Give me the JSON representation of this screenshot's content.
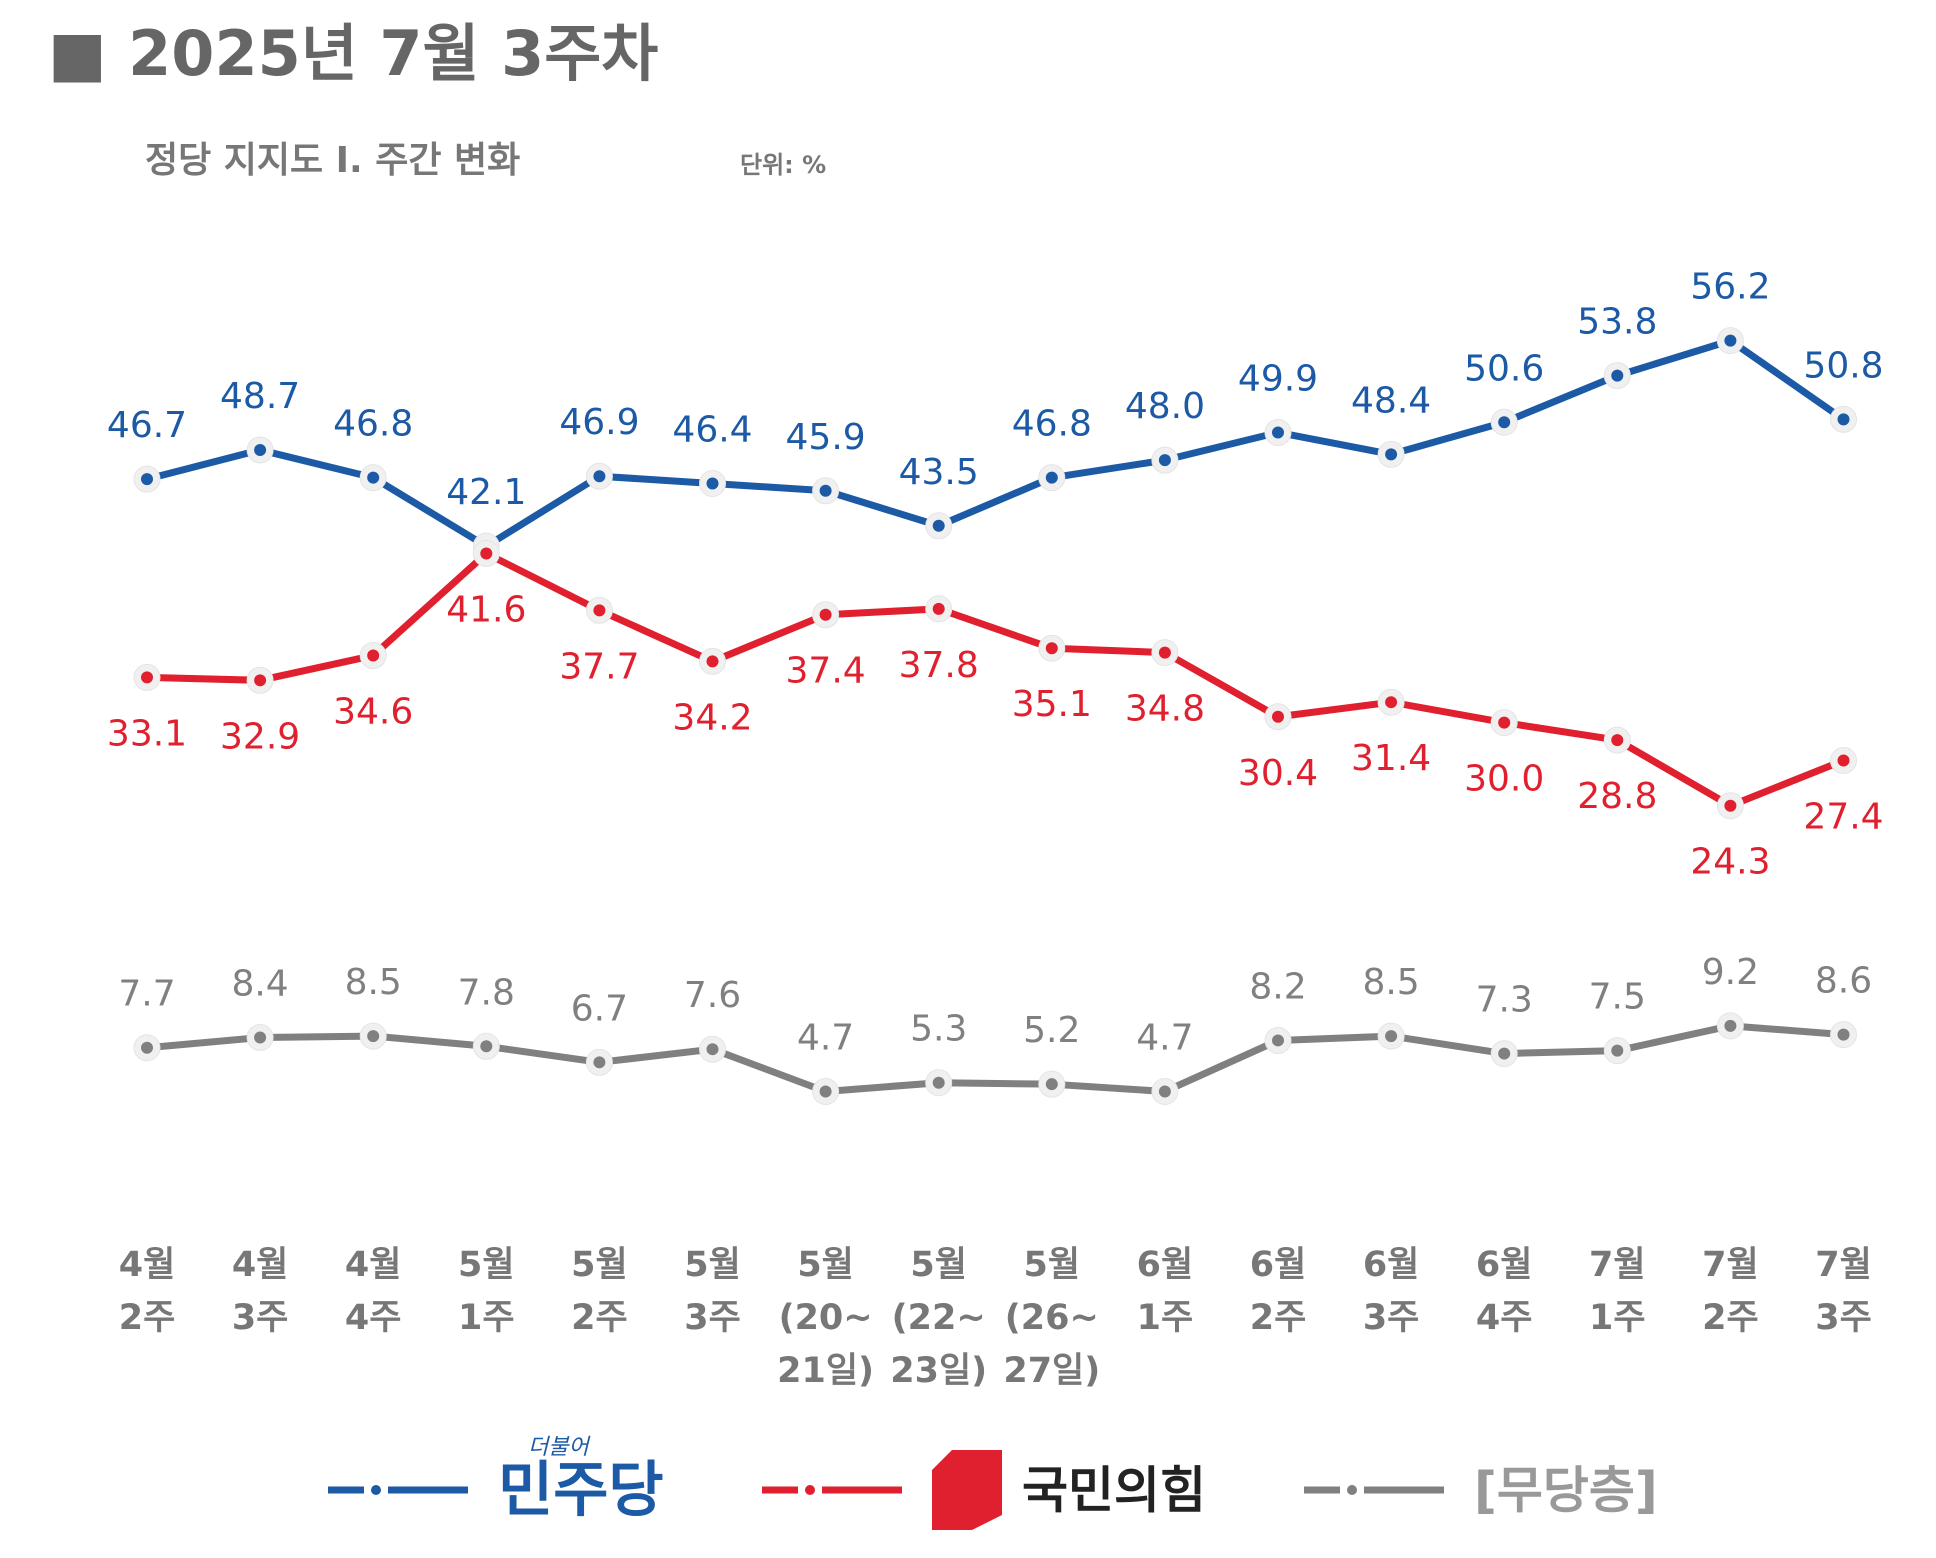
{
  "chart_data": {
    "type": "line",
    "title": "■ 2025년 7월 3주차",
    "subtitle": "정당 지지도 Ⅰ. 주간 변화",
    "unit": "단위: %",
    "categories": [
      [
        "4월",
        "2주"
      ],
      [
        "4월",
        "3주"
      ],
      [
        "4월",
        "4주"
      ],
      [
        "5월",
        "1주"
      ],
      [
        "5월",
        "2주"
      ],
      [
        "5월",
        "3주"
      ],
      [
        "5월",
        "(20~",
        "21일)"
      ],
      [
        "5월",
        "(22~",
        "23일)"
      ],
      [
        "5월",
        "(26~",
        "27일)"
      ],
      [
        "6월",
        "1주"
      ],
      [
        "6월",
        "2주"
      ],
      [
        "6월",
        "3주"
      ],
      [
        "6월",
        "4주"
      ],
      [
        "7월",
        "1주"
      ],
      [
        "7월",
        "2주"
      ],
      [
        "7월",
        "3주"
      ]
    ],
    "series": [
      {
        "name": "민주당",
        "logo_text": "더불어",
        "color": "#1c5aa6",
        "label_position": "above",
        "values": [
          46.7,
          48.7,
          46.8,
          42.1,
          46.9,
          46.4,
          45.9,
          43.5,
          46.8,
          48.0,
          49.9,
          48.4,
          50.6,
          53.8,
          56.2,
          50.8
        ],
        "value_labels": [
          "46.7",
          "48.7",
          "46.8",
          "42.1",
          "46.9",
          "46.4",
          "45.9",
          "43.5",
          "46.8",
          "48.0",
          "49.9",
          "48.4",
          "50.6",
          "53.8",
          "56.2",
          "50.8"
        ]
      },
      {
        "name": "국민의힘",
        "color": "#e0202e",
        "label_position": "below",
        "values": [
          33.1,
          32.9,
          34.6,
          41.6,
          37.7,
          34.2,
          37.4,
          37.8,
          35.1,
          34.8,
          30.4,
          31.4,
          30.0,
          28.8,
          24.3,
          27.4
        ],
        "value_labels": [
          "33.1",
          "32.9",
          "34.6",
          "41.6",
          "37.7",
          "34.2",
          "37.4",
          "37.8",
          "35.1",
          "34.8",
          "30.4",
          "31.4",
          "30.0",
          "28.8",
          "24.3",
          "27.4"
        ]
      },
      {
        "name": "[무당층]",
        "color": "#808080",
        "label_position": "above",
        "values": [
          7.7,
          8.4,
          8.5,
          7.8,
          6.7,
          7.6,
          4.7,
          5.3,
          5.2,
          4.7,
          8.2,
          8.5,
          7.3,
          7.5,
          9.2,
          8.6
        ]
      }
    ]
  }
}
